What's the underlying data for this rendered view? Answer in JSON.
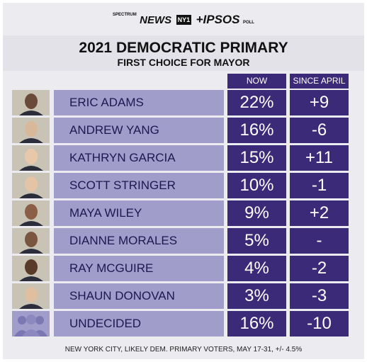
{
  "header": {
    "logo": {
      "brand": "SPECTRUM",
      "network": "NEWS",
      "station": "NY1",
      "partner": "+IPSOS",
      "partner_sub": "POLL"
    },
    "title": "2021 DEMOCRATIC PRIMARY",
    "subtitle": "FIRST CHOICE FOR MAYOR"
  },
  "table": {
    "columns": [
      "NOW",
      "SINCE APRIL"
    ],
    "rows": [
      [
        "ERIC ADAMS",
        "22%",
        "+9"
      ],
      [
        "ANDREW YANG",
        "16%",
        "-6"
      ],
      [
        "KATHRYN GARCIA",
        "15%",
        "+11"
      ],
      [
        "SCOTT STRINGER",
        "10%",
        "-1"
      ],
      [
        "MAYA WILEY",
        "9%",
        "+2"
      ],
      [
        "DIANNE MORALES",
        "5%",
        "-"
      ],
      [
        "RAY MCGUIRE",
        "4%",
        "-2"
      ],
      [
        "SHAUN DONOVAN",
        "3%",
        "-3"
      ],
      [
        "UNDECIDED",
        "16%",
        "-10"
      ]
    ]
  },
  "footer": "NEW YORK CITY, LIKELY DEM. PRIMARY VOTERS, MAY 17-31, +/- 4.5%"
}
